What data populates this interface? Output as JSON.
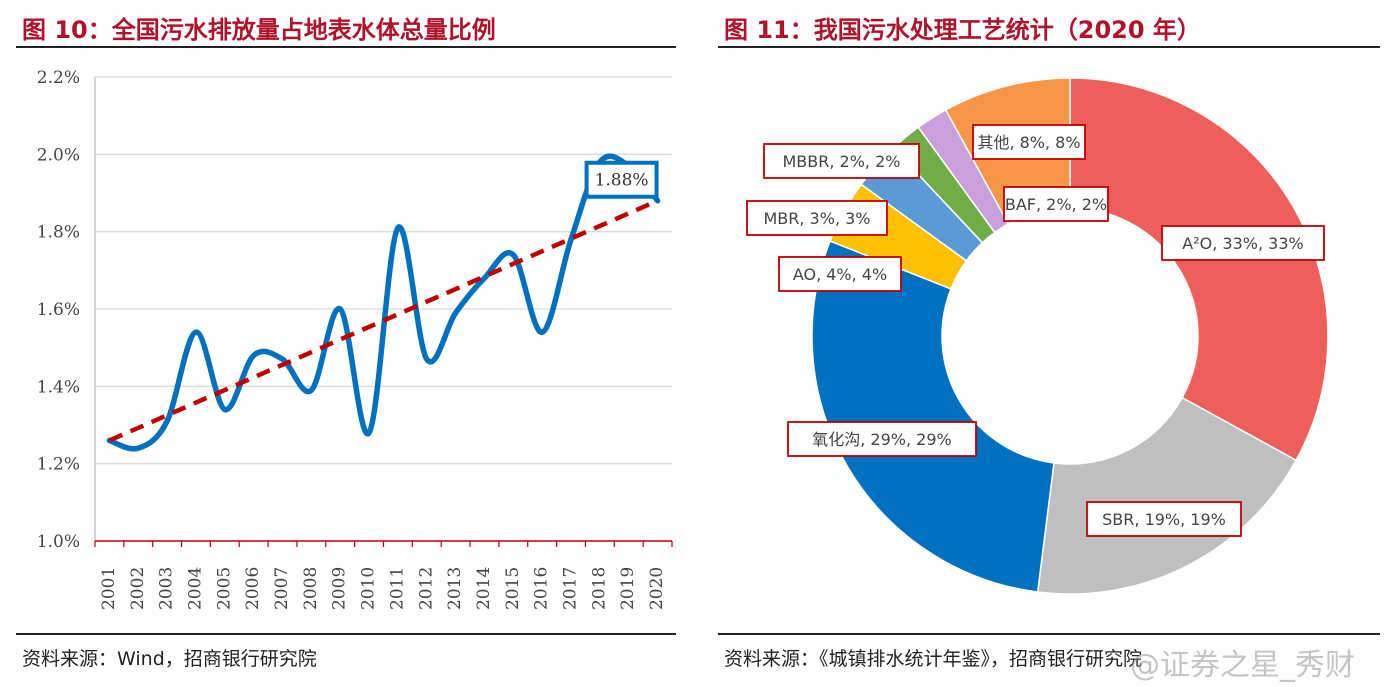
{
  "left": {
    "title": "图 10：全国污水排放量占地表水体总量比例",
    "source": "资料来源：Wind，招商银行研究院"
  },
  "right": {
    "title": "图 11：我国污水处理工艺统计（2020 年）",
    "source": "资料来源：《城镇排水统计年鉴》，招商银行研究院"
  },
  "watermark": "@证券之星_秀财",
  "colors": {
    "title": "#b0112b",
    "line": "#0070c0",
    "trend": "#c00000",
    "label_border": "#c00000"
  },
  "chart_data": [
    {
      "type": "line",
      "title": "",
      "xlabel": "",
      "ylabel": "",
      "x": [
        "2001",
        "2002",
        "2003",
        "2004",
        "2005",
        "2006",
        "2007",
        "2008",
        "2009",
        "2010",
        "2011",
        "2012",
        "2013",
        "2014",
        "2015",
        "2016",
        "2017",
        "2018",
        "2019",
        "2020"
      ],
      "series": [
        {
          "values": [
            1.26,
            1.24,
            1.31,
            1.54,
            1.34,
            1.48,
            1.47,
            1.39,
            1.6,
            1.28,
            1.81,
            1.47,
            1.59,
            1.68,
            1.74,
            1.54,
            1.78,
            1.98,
            1.97,
            1.88
          ]
        }
      ],
      "trendline": {
        "style": "dashed",
        "from": [
          2001,
          1.26
        ],
        "to": [
          2020,
          1.88
        ]
      },
      "yticks": [
        "1.0%",
        "1.2%",
        "1.4%",
        "1.6%",
        "1.8%",
        "2.0%",
        "2.2%"
      ],
      "ylim": [
        1.0,
        2.2
      ],
      "y_unit": "%",
      "grid": true,
      "annotation": {
        "x": "2020",
        "text": "1.88%"
      }
    },
    {
      "type": "pie",
      "donut": true,
      "title": "",
      "slices": [
        {
          "name": "A²O",
          "value": 33,
          "label": "A²O, 33%, 33%",
          "color": "#ee5f5b"
        },
        {
          "name": "SBR",
          "value": 19,
          "label": "SBR, 19%, 19%",
          "color": "#bfbfbf"
        },
        {
          "name": "氧化沟",
          "value": 29,
          "label": "氧化沟, 29%, 29%",
          "color": "#0070c0"
        },
        {
          "name": "AO",
          "value": 4,
          "label": "AO, 4%, 4%",
          "color": "#ffc000"
        },
        {
          "name": "MBR",
          "value": 3,
          "label": "MBR, 3%, 3%",
          "color": "#5b9bd5"
        },
        {
          "name": "MBBR",
          "value": 2,
          "label": "MBBR, 2%, 2%",
          "color": "#70ad47"
        },
        {
          "name": "BAF",
          "value": 2,
          "label": "BAF, 2%, 2%",
          "color": "#c9a0dc"
        },
        {
          "name": "其他",
          "value": 8,
          "label": "其他, 8%, 8%",
          "color": "#f79646"
        }
      ],
      "label_style": "boxed"
    }
  ]
}
